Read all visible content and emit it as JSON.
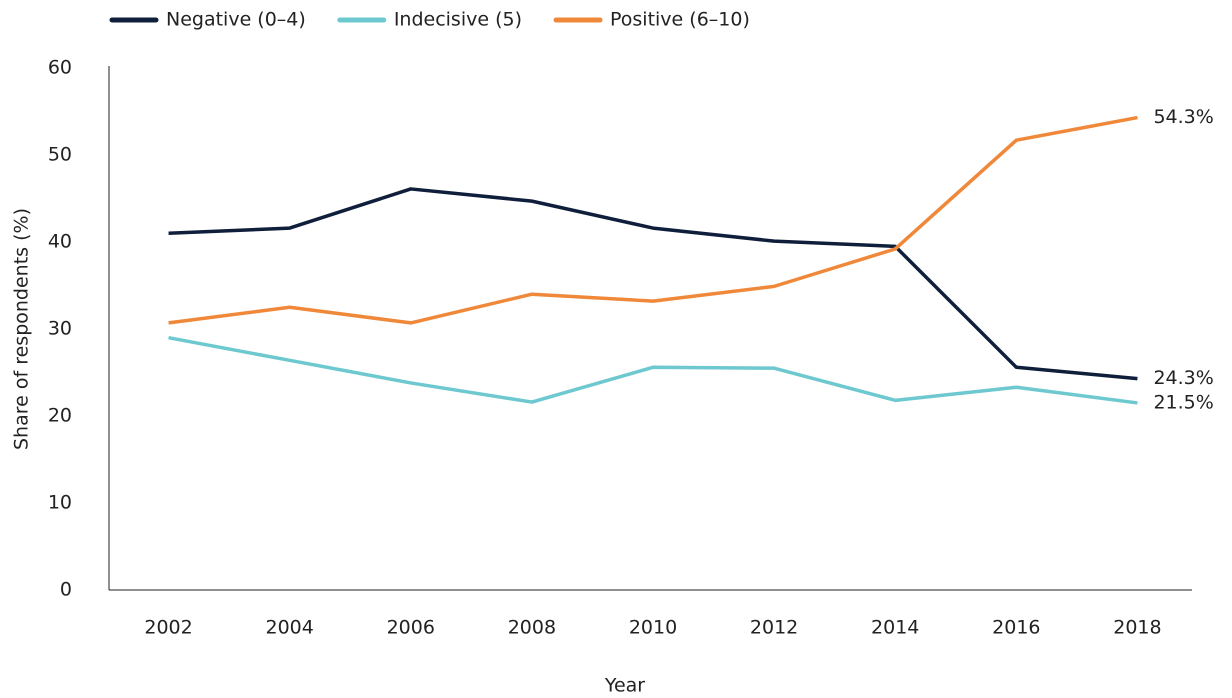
{
  "chart_data": {
    "type": "line",
    "x_label": "Year",
    "y_label": "Share of respondents (%)",
    "categories": [
      "2002",
      "2004",
      "2006",
      "2008",
      "2010",
      "2012",
      "2014",
      "2016",
      "2018"
    ],
    "series": [
      {
        "name": "Negative (0–4)",
        "color": "#0f1f3b",
        "values": [
          41.0,
          41.6,
          46.1,
          44.7,
          41.6,
          40.1,
          39.5,
          25.6,
          24.3
        ],
        "value_labels": [
          null,
          null,
          null,
          null,
          null,
          null,
          null,
          null,
          "24.3%"
        ]
      },
      {
        "name": "Indecisive (5)",
        "color": "#6dc9cf",
        "values": [
          29.0,
          26.4,
          23.8,
          21.6,
          25.6,
          25.5,
          21.8,
          23.3,
          21.5
        ],
        "value_labels": [
          null,
          null,
          null,
          null,
          null,
          null,
          null,
          null,
          "21.5%"
        ]
      },
      {
        "name": "Positive (6–10)",
        "color": "#f0883a",
        "values": [
          30.7,
          32.5,
          30.7,
          34.0,
          33.2,
          34.9,
          39.2,
          51.7,
          54.3
        ],
        "value_labels": [
          null,
          null,
          null,
          null,
          null,
          null,
          null,
          null,
          "54.3%"
        ]
      }
    ],
    "ylim": [
      0,
      60
    ],
    "yticks": [
      0,
      10,
      20,
      30,
      40,
      50,
      60
    ],
    "grid": false
  }
}
